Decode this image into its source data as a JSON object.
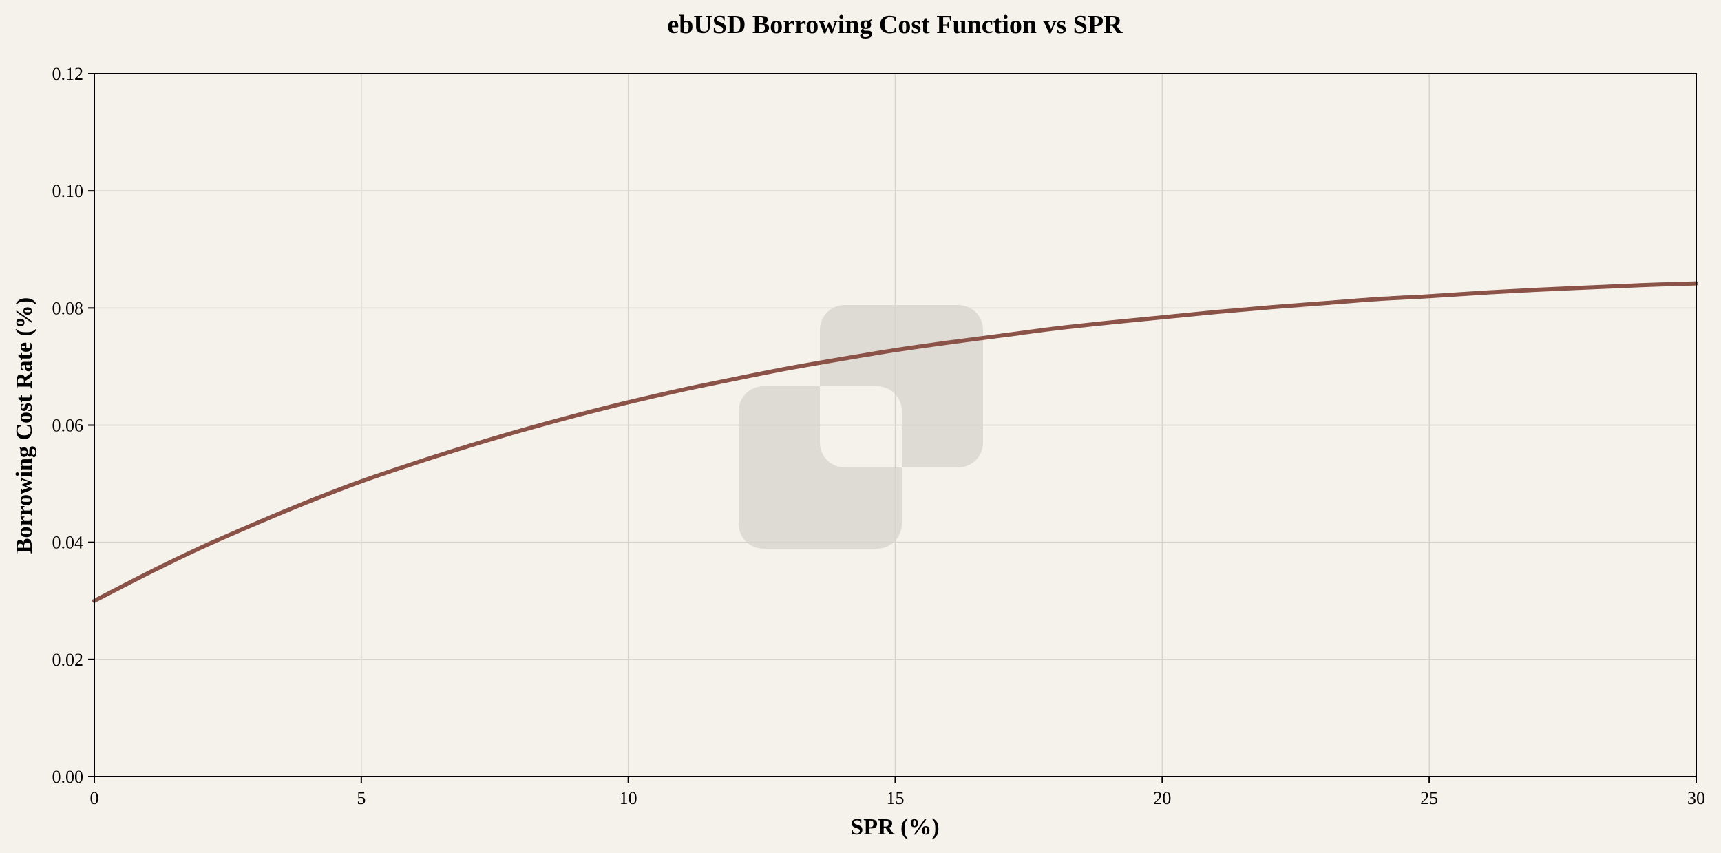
{
  "chart_data": {
    "type": "line",
    "title": "ebUSD Borrowing Cost Function vs SPR",
    "xlabel": "SPR (%)",
    "ylabel": "Borrowing Cost Rate (%)",
    "xlim": [
      0,
      30
    ],
    "ylim": [
      0,
      0.12
    ],
    "xticks": [
      0,
      5,
      10,
      15,
      20,
      25,
      30
    ],
    "yticks": [
      0,
      0.02,
      0.04,
      0.06,
      0.08,
      0.1,
      0.12
    ],
    "xtick_labels": [
      "0",
      "5",
      "10",
      "15",
      "20",
      "25",
      "30"
    ],
    "ytick_labels": [
      "0.00",
      "0.02",
      "0.04",
      "0.06",
      "0.08",
      "0.10",
      "0.12"
    ],
    "grid": true,
    "legend": "none",
    "series": [
      {
        "color": "#8b5247",
        "x": [
          0,
          1,
          2,
          3,
          4,
          5,
          6,
          7,
          8,
          9,
          10,
          11,
          12,
          13,
          14,
          15,
          16,
          17,
          18,
          19,
          20,
          21,
          22,
          23,
          24,
          25,
          26,
          27,
          28,
          29,
          30
        ],
        "y": [
          0.03,
          0.0347,
          0.0391,
          0.0431,
          0.0469,
          0.0504,
          0.0535,
          0.0564,
          0.0591,
          0.0616,
          0.0639,
          0.066,
          0.0679,
          0.0697,
          0.0713,
          0.0728,
          0.0741,
          0.0753,
          0.0765,
          0.0775,
          0.0784,
          0.0793,
          0.0801,
          0.0808,
          0.0815,
          0.082,
          0.0826,
          0.0831,
          0.0835,
          0.0839,
          0.0842
        ]
      }
    ]
  },
  "colors": {
    "background": "#f5f2ec",
    "watermark": "#dedad4"
  },
  "watermark_icon": "overlapping-squares-logo"
}
